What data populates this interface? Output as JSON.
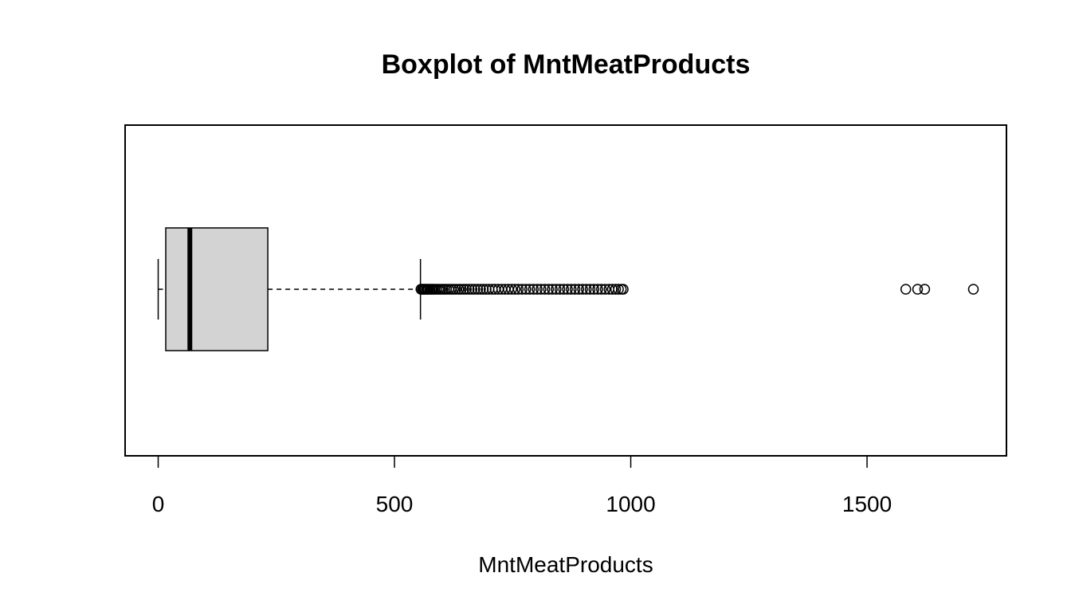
{
  "chart_data": {
    "type": "boxplot",
    "orientation": "horizontal",
    "title": "Boxplot of MntMeatProducts",
    "xlabel": "MntMeatProducts",
    "ylabel": "",
    "xlim": [
      -70,
      1795
    ],
    "xticks": [
      0,
      500,
      1000,
      1500
    ],
    "xtick_labels": [
      "0",
      "500",
      "1000",
      "1500"
    ],
    "grid": false,
    "box": {
      "whisker_low": 0,
      "q1": 16,
      "median": 67,
      "q3": 232,
      "whisker_high": 555,
      "fill": "#d3d3d3"
    },
    "outliers": [
      556,
      559,
      561,
      563,
      565,
      568,
      570,
      572,
      575,
      578,
      580,
      583,
      586,
      590,
      594,
      598,
      602,
      606,
      610,
      615,
      620,
      625,
      630,
      636,
      641,
      647,
      652,
      658,
      664,
      670,
      676,
      682,
      688,
      694,
      700,
      707,
      713,
      720,
      727,
      734,
      741,
      748,
      755,
      762,
      770,
      778,
      786,
      794,
      802,
      810,
      818,
      826,
      834,
      842,
      850,
      858,
      866,
      874,
      882,
      890,
      898,
      906,
      914,
      922,
      930,
      938,
      946,
      954,
      961,
      968,
      974,
      980,
      984,
      1582,
      1607,
      1622,
      1725
    ]
  }
}
